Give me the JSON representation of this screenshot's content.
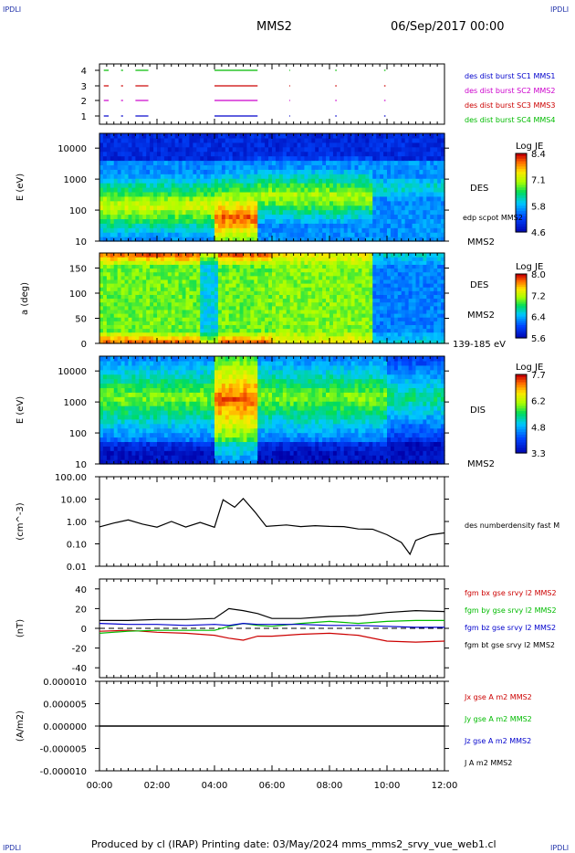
{
  "header": {
    "corner_label": "IPDLI",
    "title": "MMS2",
    "date": "06/Sep/2017 00:00"
  },
  "footer": {
    "text": "Produced by cl (IRAP)   Printing date: 03/May/2024   mms_mms2_srvy_vue_web1.cl"
  },
  "time_axis": {
    "ticks": [
      "00:00",
      "02:00",
      "04:00",
      "06:00",
      "08:00",
      "10:00",
      "12:00"
    ]
  },
  "chart_data": [
    {
      "type": "scatter",
      "name": "burst-coverage",
      "yticks": [
        "1",
        "2",
        "3",
        "4"
      ],
      "legend": [
        {
          "text": "des dist burst SC1 MMS1",
          "color": "#0000cc"
        },
        {
          "text": "des dist burst SC2 MMS2",
          "color": "#cc00cc"
        },
        {
          "text": "des dist burst SC3 MMS3",
          "color": "#cc0000"
        },
        {
          "text": "des dist burst SC4 MMS4",
          "color": "#00bb00"
        }
      ],
      "intervals_hours": [
        [
          0.15,
          0.32
        ],
        [
          0.75,
          0.82
        ],
        [
          1.25,
          1.7
        ],
        [
          4.0,
          5.5
        ],
        [
          6.6,
          6.63
        ],
        [
          8.2,
          8.25
        ],
        [
          9.9,
          9.95
        ]
      ]
    },
    {
      "type": "heatmap",
      "name": "DES energy spectrogram",
      "ylabel": "E (eV)",
      "yscale": "log",
      "ylim": [
        10,
        30000
      ],
      "yticks": [
        "10",
        "100",
        "1000",
        "10000"
      ],
      "right_label": "DES",
      "right_annot": "edp scpot MMS2",
      "right_bottom": "MMS2",
      "colorbar": {
        "title": "Log JE",
        "ticks": [
          "8.4",
          "7.1",
          "5.8",
          "4.6"
        ]
      }
    },
    {
      "type": "heatmap",
      "name": "DES pitch angle",
      "ylabel": "a (deg)",
      "ylim": [
        0,
        180
      ],
      "yticks": [
        "0",
        "50",
        "100",
        "150"
      ],
      "right_label": "DES",
      "right_annot": "MMS2",
      "right_bottom": "139-185 eV",
      "colorbar": {
        "title": "Log JE",
        "ticks": [
          "8.0",
          "7.2",
          "6.4",
          "5.6"
        ]
      }
    },
    {
      "type": "heatmap",
      "name": "DIS energy spectrogram",
      "ylabel": "E (eV)",
      "yscale": "log",
      "ylim": [
        10,
        30000
      ],
      "yticks": [
        "10",
        "100",
        "1000",
        "10000"
      ],
      "right_label": "DIS",
      "right_bottom": "MMS2",
      "colorbar": {
        "title": "Log JE",
        "ticks": [
          "7.7",
          "6.2",
          "4.8",
          "3.3"
        ]
      }
    },
    {
      "type": "line",
      "name": "electron density",
      "ylabel": "(cm^-3)",
      "yscale": "log",
      "ylim": [
        0.01,
        100
      ],
      "yticks": [
        "0.01",
        "0.10",
        "1.00",
        "10.00",
        "100.00"
      ],
      "series": [
        {
          "name": "des numberdensity fast M",
          "color": "#000000"
        }
      ],
      "x": [
        0,
        0.5,
        1.0,
        1.5,
        2.0,
        2.5,
        3.0,
        3.5,
        4.0,
        4.3,
        4.7,
        5.0,
        5.4,
        5.8,
        6.5,
        7.0,
        7.5,
        8.0,
        8.5,
        9.0,
        9.5,
        10.0,
        10.5,
        10.8,
        11.0,
        11.5,
        12.0
      ],
      "y": [
        0.6,
        0.9,
        1.2,
        0.7,
        0.5,
        1.0,
        0.6,
        0.8,
        0.6,
        10.0,
        5.0,
        12.0,
        3.0,
        0.6,
        0.7,
        0.6,
        0.6,
        0.55,
        0.6,
        0.5,
        0.45,
        0.25,
        0.12,
        0.03,
        0.15,
        0.25,
        0.3
      ]
    },
    {
      "type": "line",
      "name": "magnetic field",
      "ylabel": "(nT)",
      "ylim": [
        -50,
        50
      ],
      "yticks": [
        "-40",
        "-20",
        "0",
        "20",
        "40"
      ],
      "x": [
        0,
        1,
        2,
        3,
        4,
        4.5,
        5,
        5.5,
        6,
        7,
        8,
        9,
        10,
        11,
        12
      ],
      "series": [
        {
          "name": "fgm bx gse srvy l2 MMS2",
          "color": "#cc0000",
          "values": [
            -3,
            -2,
            -4,
            -5,
            -7,
            -10,
            -12,
            -8,
            -8,
            -6,
            -5,
            -7,
            -13,
            -14,
            -13
          ]
        },
        {
          "name": "fgm by gse srvy l2 MMS2",
          "color": "#00bb00",
          "values": [
            -5,
            -3,
            -2,
            -2,
            -2,
            2,
            5,
            3,
            2,
            5,
            7,
            5,
            7,
            8,
            8
          ]
        },
        {
          "name": "fgm bz gse srvy l2 MMS2",
          "color": "#0000cc",
          "values": [
            5,
            4,
            4,
            3,
            4,
            3,
            5,
            4,
            4,
            4,
            3,
            3,
            2,
            1,
            1
          ]
        },
        {
          "name": "fgm bt gse srvy l2 MMS2",
          "color": "#000000",
          "values": [
            8,
            8,
            9,
            9,
            10,
            20,
            18,
            15,
            10,
            10,
            12,
            13,
            16,
            18,
            17
          ]
        }
      ]
    },
    {
      "type": "line",
      "name": "current density",
      "ylabel": "(A/m2)",
      "ylim": [
        -0.0001,
        0.0001
      ],
      "yticks": [
        "0.000010",
        "0.000005",
        "0.000000",
        "-0.000005",
        "-0.000010"
      ],
      "series": [
        {
          "name": "Jx gse A m2 MMS2",
          "color": "#cc0000"
        },
        {
          "name": "Jy gse A m2 MMS2",
          "color": "#00bb00"
        },
        {
          "name": "Jz gse A m2 MMS2",
          "color": "#0000cc"
        },
        {
          "name": "J A m2 MMS2",
          "color": "#000000"
        }
      ],
      "x": [
        0,
        12
      ],
      "y": [
        0,
        0
      ]
    }
  ]
}
